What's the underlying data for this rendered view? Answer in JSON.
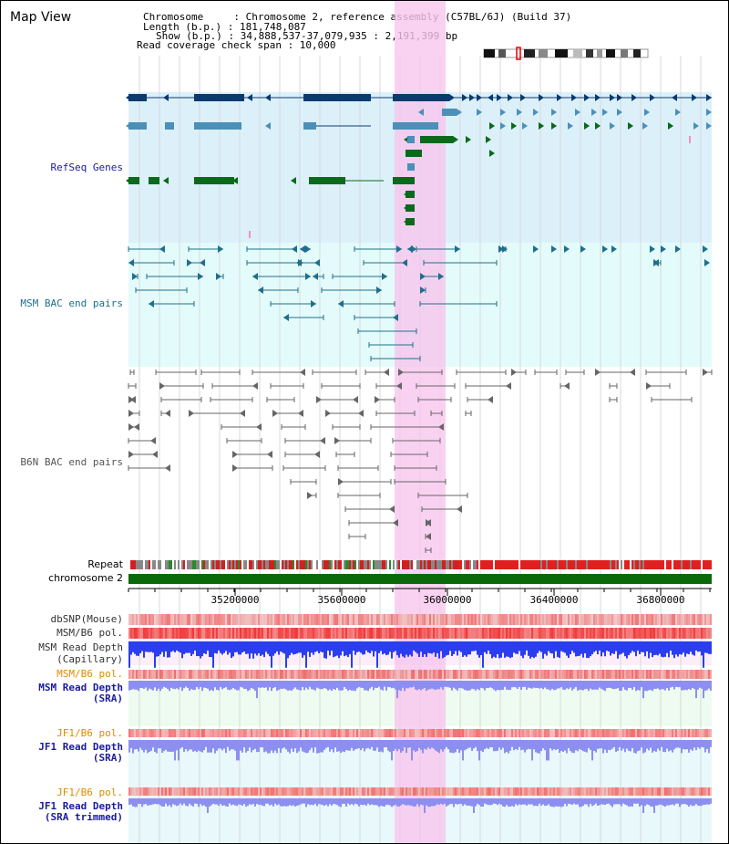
{
  "map_title": "Map View",
  "header": {
    "chromosome_line": "Chromosome     : Chromosome 2, reference assembly (C57BL/6J) (Build 37)",
    "length_line": "Length (b.p.) : 181,748,087",
    "show_line": "Show (b.p.) : 34,888,537-37,079,935 : 2,191,399 bp",
    "span_line": "Read coverage check span : 10,000"
  },
  "tracks": {
    "refseq": "RefSeq Genes",
    "msm_bac": "MSM BAC end pairs",
    "b6n_bac": "B6N BAC end pairs",
    "repeat": "Repeat",
    "chromosome": "chromosome 2",
    "dbsnp": "dbSNP(Mouse)",
    "msm_b6_pol": "MSM/B6 pol.",
    "msm_read_depth_cap_1": "MSM Read Depth",
    "msm_read_depth_cap_2": "(Capillary)",
    "msm_b6_pol_2": "MSM/B6 pol.",
    "msm_read_depth_sra_1": "MSM Read Depth",
    "msm_read_depth_sra_2": "(SRA)",
    "jf1_b6_pol": "JF1/B6 pol.",
    "jf1_read_depth_sra_1": "JF1 Read Depth",
    "jf1_read_depth_sra_2": "(SRA)",
    "jf1_b6_pol_2": "JF1/B6 pol.",
    "jf1_read_depth_trim_1": "JF1 Read Depth",
    "jf1_read_depth_trim_2": "(SRA trimmed)"
  },
  "axis_ticks": [
    "35200000",
    "35600000",
    "36000000",
    "36400000",
    "36800000"
  ],
  "colors": {
    "refseq_dark": "#0b3a6e",
    "refseq_mid": "#4a90b8",
    "refseq_green": "#0a6a1a",
    "msm_line": "#1f6f8a",
    "b6n_line": "#666666",
    "highlight": "#f7c6ee",
    "chromosome_bar": "#0a6a0a",
    "depth_blue": "#2a3ef0",
    "depth_light": "#8d8ff0",
    "pol_red": "#e43030",
    "label_blue": "#1a1aa0",
    "label_orange": "#e08a00"
  }
}
